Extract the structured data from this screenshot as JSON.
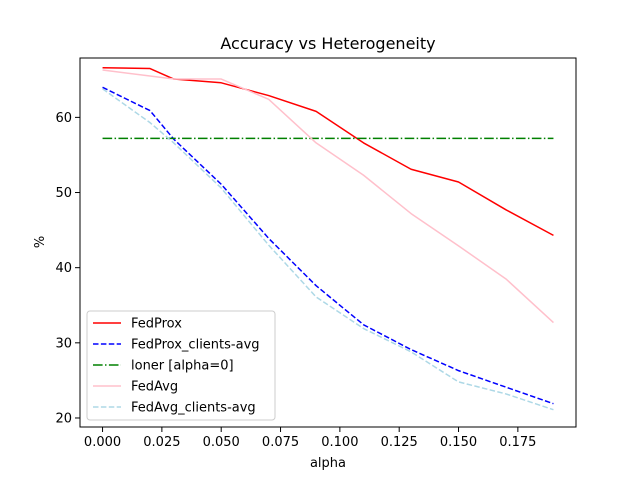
{
  "chart_data": {
    "type": "line",
    "title": "Accuracy vs Heterogeneity",
    "xlabel": "alpha",
    "ylabel": "%",
    "xlim": [
      -0.0095,
      0.1995
    ],
    "ylim": [
      18.8,
      67.9
    ],
    "xticks": [
      0.0,
      0.025,
      0.05,
      0.075,
      0.1,
      0.125,
      0.15,
      0.175
    ],
    "xtick_labels": [
      "0.000",
      "0.025",
      "0.050",
      "0.075",
      "0.100",
      "0.125",
      "0.150",
      "0.175"
    ],
    "yticks": [
      20,
      30,
      40,
      50,
      60
    ],
    "ytick_labels": [
      "20",
      "30",
      "40",
      "50",
      "60"
    ],
    "grid": false,
    "legend_position": "lower-left",
    "series": [
      {
        "name": "FedProx",
        "color": "#ff0000",
        "dash": "solid",
        "x": [
          0.0,
          0.02,
          0.03,
          0.05,
          0.07,
          0.09,
          0.11,
          0.13,
          0.15,
          0.17,
          0.19
        ],
        "y": [
          66.6,
          66.5,
          65.1,
          64.6,
          62.9,
          60.8,
          56.6,
          53.1,
          51.4,
          47.7,
          44.3
        ]
      },
      {
        "name": "FedProx_clients-avg",
        "color": "#0000ff",
        "dash": "dashed",
        "x": [
          0.0,
          0.02,
          0.03,
          0.05,
          0.07,
          0.09,
          0.11,
          0.13,
          0.15,
          0.17,
          0.19
        ],
        "y": [
          64.0,
          60.9,
          57.1,
          51.1,
          43.9,
          37.6,
          32.4,
          29.1,
          26.3,
          24.1,
          21.9
        ]
      },
      {
        "name": "loner [alpha=0]",
        "color": "#008000",
        "dash": "dashdot",
        "x": [
          0.0,
          0.19
        ],
        "y": [
          57.2,
          57.2
        ]
      },
      {
        "name": "FedAvg",
        "color": "#ffc0cb",
        "dash": "solid",
        "x": [
          0.0,
          0.02,
          0.03,
          0.05,
          0.07,
          0.09,
          0.11,
          0.13,
          0.15,
          0.17,
          0.19
        ],
        "y": [
          66.3,
          65.5,
          65.1,
          65.1,
          62.4,
          56.6,
          52.3,
          47.2,
          42.9,
          38.5,
          32.7
        ]
      },
      {
        "name": "FedAvg_clients-avg",
        "color": "#add8e6",
        "dash": "dashed",
        "x": [
          0.0,
          0.02,
          0.03,
          0.05,
          0.07,
          0.09,
          0.11,
          0.13,
          0.15,
          0.17,
          0.19
        ],
        "y": [
          63.8,
          59.3,
          56.6,
          50.6,
          43.0,
          36.1,
          31.9,
          28.8,
          24.8,
          23.2,
          21.1
        ]
      }
    ]
  }
}
